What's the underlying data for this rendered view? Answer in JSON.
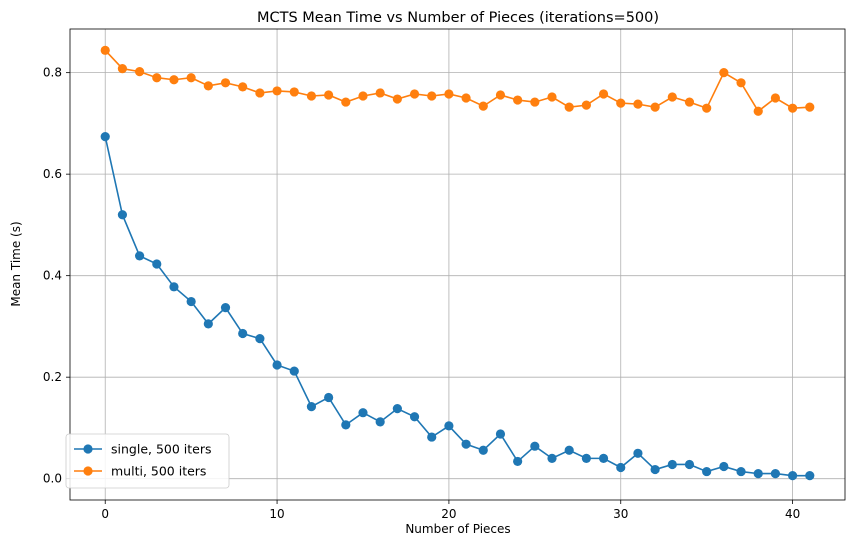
{
  "chart_data": {
    "type": "line",
    "title": "MCTS Mean Time vs Number of Pieces (iterations=500)",
    "xlabel": "Number of Pieces",
    "ylabel": "Mean Time (s)",
    "xlim": [
      -2.05,
      43.05
    ],
    "ylim": [
      -0.042,
      0.886
    ],
    "xticks": [
      0,
      10,
      20,
      30,
      40
    ],
    "yticks": [
      0.0,
      0.2,
      0.4,
      0.6,
      0.8
    ],
    "xtick_labels": [
      "0",
      "10",
      "20",
      "30",
      "40"
    ],
    "ytick_labels": [
      "0.0",
      "0.2",
      "0.4",
      "0.6",
      "0.8"
    ],
    "grid": true,
    "legend_position": "lower-left",
    "x": [
      0,
      1,
      2,
      3,
      4,
      5,
      6,
      7,
      8,
      9,
      10,
      11,
      12,
      13,
      14,
      15,
      16,
      17,
      18,
      19,
      20,
      21,
      22,
      23,
      24,
      25,
      26,
      27,
      28,
      29,
      30,
      31,
      32,
      33,
      34,
      35,
      36,
      37,
      38,
      39,
      40,
      41
    ],
    "series": [
      {
        "name": "single, 500 iters",
        "color": "#1f77b4",
        "values": [
          0.674,
          0.52,
          0.439,
          0.423,
          0.378,
          0.349,
          0.305,
          0.337,
          0.286,
          0.276,
          0.224,
          0.212,
          0.142,
          0.16,
          0.106,
          0.13,
          0.112,
          0.138,
          0.122,
          0.082,
          0.104,
          0.068,
          0.056,
          0.088,
          0.034,
          0.064,
          0.04,
          0.056,
          0.04,
          0.04,
          0.022,
          0.05,
          0.018,
          0.028,
          0.028,
          0.014,
          0.024,
          0.014,
          0.01,
          0.01,
          0.006,
          0.006
        ]
      },
      {
        "name": "multi, 500 iters",
        "color": "#ff7f0e",
        "values": [
          0.844,
          0.808,
          0.802,
          0.79,
          0.786,
          0.79,
          0.774,
          0.78,
          0.772,
          0.76,
          0.764,
          0.762,
          0.754,
          0.756,
          0.742,
          0.754,
          0.76,
          0.748,
          0.758,
          0.754,
          0.758,
          0.75,
          0.734,
          0.756,
          0.746,
          0.742,
          0.752,
          0.732,
          0.736,
          0.758,
          0.74,
          0.738,
          0.732,
          0.752,
          0.742,
          0.73,
          0.8,
          0.78,
          0.724,
          0.75,
          0.73,
          0.732
        ]
      }
    ]
  }
}
